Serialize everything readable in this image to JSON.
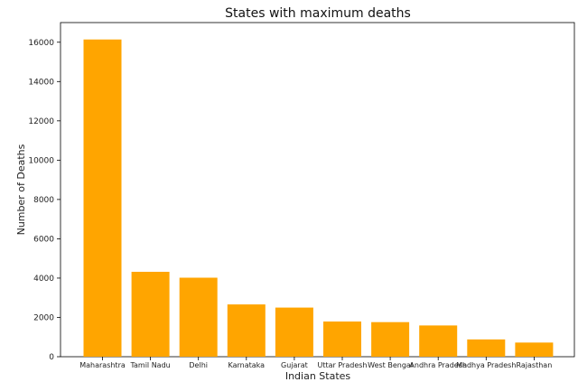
{
  "chart_data": {
    "type": "bar",
    "title": "States with maximum deaths",
    "xlabel": "Indian States",
    "ylabel": "Number of Deaths",
    "categories": [
      "Maharashtra",
      "Tamil Nadu",
      "Delhi",
      "Karnataka",
      "Gujarat",
      "Uttar Pradesh",
      "West Bengal",
      "Andhra Pradesh",
      "Madhya Pradesh",
      "Rajasthan"
    ],
    "values": [
      16140,
      4320,
      4020,
      2660,
      2500,
      1790,
      1760,
      1590,
      880,
      720
    ],
    "ylim": [
      0,
      17000
    ],
    "yticks": [
      0,
      2000,
      4000,
      6000,
      8000,
      10000,
      12000,
      14000,
      16000
    ],
    "bar_color": "#FFA500",
    "grid": false
  }
}
